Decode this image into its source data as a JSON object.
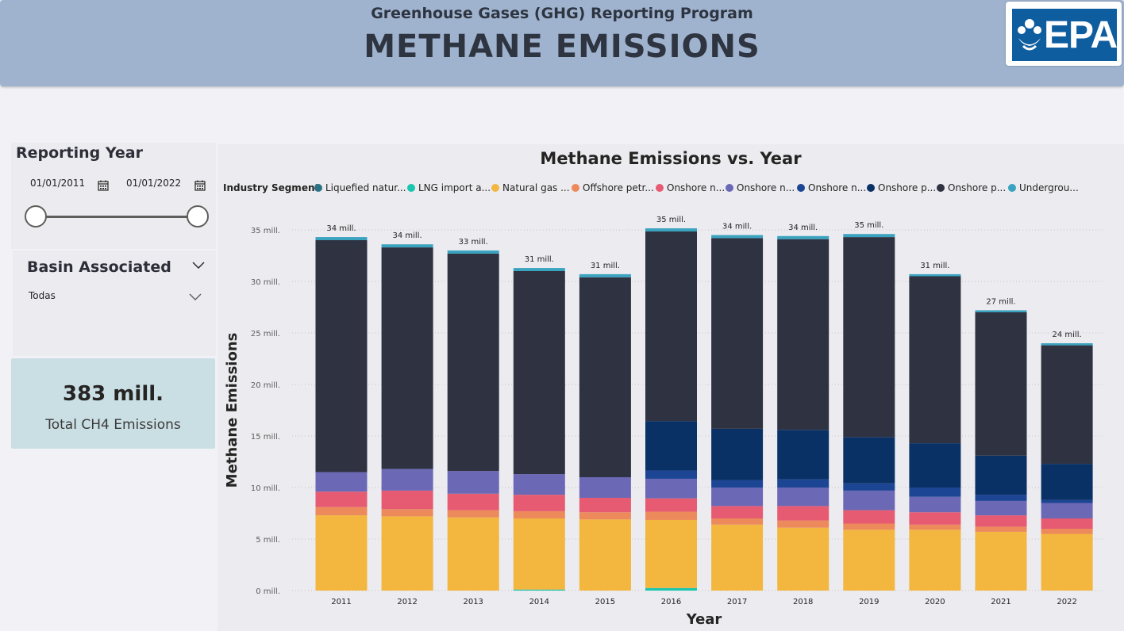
{
  "header": {
    "subtitle": "Greenhouse Gases (GHG) Reporting Program",
    "title": "METHANE EMISSIONS",
    "logo_text": "EPA",
    "logo_color": "#0e5d9f"
  },
  "filters": {
    "year": {
      "label": "Reporting Year",
      "start": "01/01/2011",
      "end": "01/01/2022",
      "range_fraction": [
        0,
        1
      ]
    },
    "basin": {
      "label": "Basin Associated",
      "value": "Todas"
    }
  },
  "kpi": {
    "value": "383 mill.",
    "label": "Total CH4 Emissions"
  },
  "chart_data": {
    "type": "bar",
    "stacked": true,
    "title": "Methane Emissions vs. Year",
    "xlabel": "Year",
    "ylabel": "Methane Emissions",
    "ylim": [
      0,
      35
    ],
    "yticks": [
      0,
      5,
      10,
      15,
      20,
      25,
      30,
      35
    ],
    "ytick_labels": [
      "0 mill.",
      "5 mill.",
      "10 mill.",
      "15 mill.",
      "20 mill.",
      "25 mill.",
      "30 mill.",
      "35 mill."
    ],
    "grid": true,
    "legend_title": "Industry Segment",
    "legend_position": "top",
    "categories": [
      "2011",
      "2012",
      "2013",
      "2014",
      "2015",
      "2016",
      "2017",
      "2018",
      "2019",
      "2020",
      "2021",
      "2022"
    ],
    "total_labels": [
      "34 mill.",
      "34 mill.",
      "33 mill.",
      "31 mill.",
      "31 mill.",
      "35 mill.",
      "34 mill.",
      "34 mill.",
      "35 mill.",
      "31 mill.",
      "27 mill.",
      "24 mill."
    ],
    "series": [
      {
        "name": "LNG import a...",
        "color": "#19c5ad",
        "values": [
          0,
          0,
          0,
          0.1,
          0,
          0.25,
          0,
          0,
          0,
          0,
          0,
          0
        ]
      },
      {
        "name": "Natural gas ...",
        "color": "#f3b63f",
        "values": [
          7.3,
          7.2,
          7.1,
          6.9,
          6.9,
          6.6,
          6.4,
          6.1,
          5.9,
          5.9,
          5.7,
          5.5
        ]
      },
      {
        "name": "Offshore petr...",
        "color": "#ec8a5b",
        "values": [
          0.8,
          0.7,
          0.7,
          0.7,
          0.7,
          0.8,
          0.6,
          0.7,
          0.6,
          0.5,
          0.5,
          0.5
        ]
      },
      {
        "name": "Onshore n...",
        "color": "#e65b72",
        "values": [
          1.5,
          1.8,
          1.6,
          1.6,
          1.4,
          1.3,
          1.2,
          1.4,
          1.3,
          1.2,
          1.1,
          1.0
        ]
      },
      {
        "name": "Onshore n...",
        "color": "#6b68b5",
        "values": [
          1.9,
          2.1,
          2.2,
          2.0,
          2.0,
          1.9,
          1.8,
          1.8,
          1.9,
          1.5,
          1.4,
          1.5
        ]
      },
      {
        "name": "Onshore n...",
        "color": "#1c4594",
        "values": [
          0,
          0,
          0,
          0,
          0,
          0.8,
          0.7,
          0.8,
          0.7,
          0.9,
          0.6,
          0.3
        ]
      },
      {
        "name": "Onshore p...",
        "color": "#0a3165",
        "values": [
          0,
          0,
          0,
          0,
          0,
          4.8,
          5.0,
          4.8,
          4.5,
          4.3,
          3.8,
          3.5
        ]
      },
      {
        "name": "Onshore p...",
        "color": "#2f3241",
        "values": [
          22.5,
          21.5,
          21.1,
          19.7,
          19.4,
          18.4,
          18.5,
          18.5,
          19.4,
          16.2,
          13.9,
          11.5
        ]
      },
      {
        "name": "Undergrou...",
        "color": "#3aa3bf",
        "values": [
          0.3,
          0.3,
          0.3,
          0.3,
          0.3,
          0.3,
          0.3,
          0.3,
          0.3,
          0.2,
          0.2,
          0.2
        ]
      },
      {
        "name": "Liquefied natur...",
        "color": "#2a7386",
        "values": [
          0,
          0,
          0,
          0,
          0,
          0,
          0,
          0,
          0,
          0,
          0,
          0
        ]
      }
    ],
    "legend_order": [
      9,
      0,
      1,
      2,
      3,
      4,
      5,
      6,
      7,
      8
    ]
  }
}
